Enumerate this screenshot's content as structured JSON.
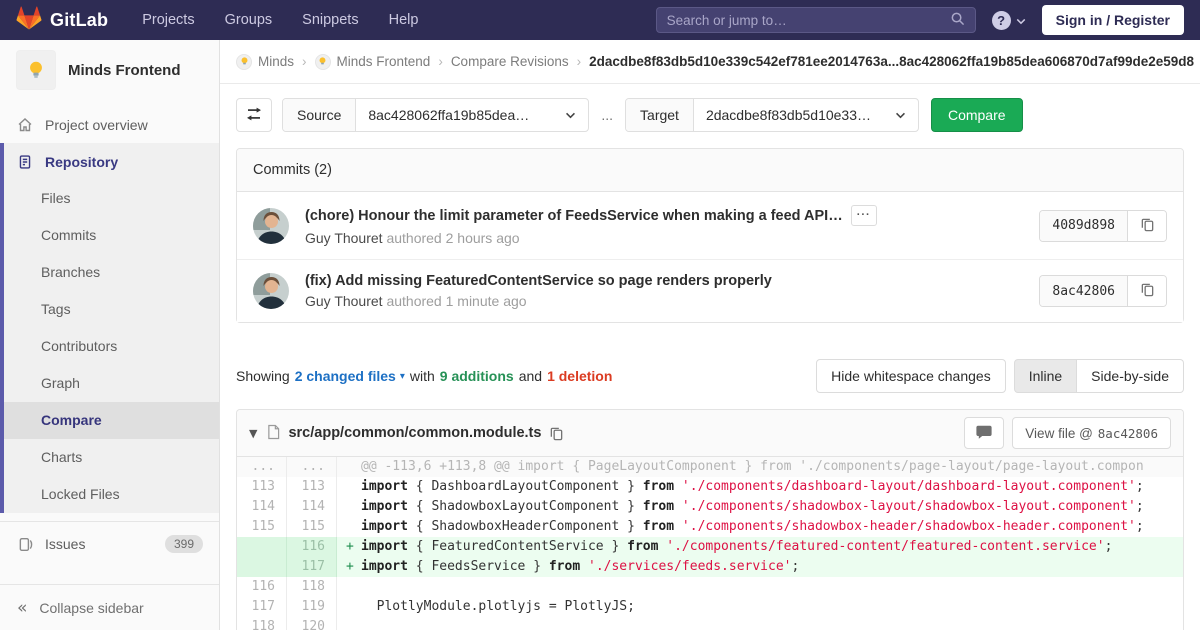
{
  "colors": {
    "topbar_bg": "#2e2c54",
    "accent_green": "#1aaa55",
    "link_blue": "#1d70c4",
    "addition_green": "#269156",
    "deletion_red": "#db3b21",
    "sidebar_active_border": "#5c5bab"
  },
  "header": {
    "logo_text": "GitLab",
    "nav": [
      "Projects",
      "Groups",
      "Snippets",
      "Help"
    ],
    "search_placeholder": "Search or jump to…",
    "help_icon": "?",
    "sign_in": "Sign in / Register"
  },
  "sidebar": {
    "project_name": "Minds Frontend",
    "overview_label": "Project overview",
    "repository_label": "Repository",
    "repository_subitems": [
      {
        "label": "Files",
        "active": false
      },
      {
        "label": "Commits",
        "active": false
      },
      {
        "label": "Branches",
        "active": false
      },
      {
        "label": "Tags",
        "active": false
      },
      {
        "label": "Contributors",
        "active": false
      },
      {
        "label": "Graph",
        "active": false
      },
      {
        "label": "Compare",
        "active": true
      },
      {
        "label": "Charts",
        "active": false
      },
      {
        "label": "Locked Files",
        "active": false
      }
    ],
    "issues_label": "Issues",
    "issues_count": "399",
    "collapse_icon": "«",
    "collapse_label": "Collapse sidebar"
  },
  "breadcrumb": {
    "separator": "›",
    "items": [
      "Minds",
      "Minds Frontend",
      "Compare Revisions"
    ],
    "current": "2dacdbe8f83db5d10e339c542ef781ee2014763a...8ac428062ffa19b85dea606870d7af99de2e59d8"
  },
  "compare_form": {
    "source_label": "Source",
    "source_value": "8ac428062ffa19b85dea…",
    "separator": "...",
    "target_label": "Target",
    "target_value": "2dacdbe8f83db5d10e33…",
    "compare_button": "Compare"
  },
  "commits": {
    "title": "Commits (2)",
    "ellipsis_label": "···",
    "items": [
      {
        "title": "(chore) Honour the limit parameter of FeedsService when making a feed API…",
        "has_ellipsis": true,
        "author": "Guy Thouret",
        "authored": " authored 2 hours ago",
        "sha": "4089d898"
      },
      {
        "title": "(fix) Add missing FeaturedContentService so page renders properly",
        "has_ellipsis": false,
        "author": "Guy Thouret",
        "authored": " authored 1 minute ago",
        "sha": "8ac42806"
      }
    ]
  },
  "diff_summary": {
    "showing": "Showing",
    "changed_files": "2 changed files",
    "caret": "▾",
    "with_word": "with",
    "additions": "9 additions",
    "and_word": "and",
    "deletions": "1 deletion",
    "hide_whitespace": "Hide whitespace changes",
    "inline": "Inline",
    "side_by_side": "Side-by-side"
  },
  "diff_file": {
    "collapse_caret": "▼",
    "path": "src/app/common/common.module.ts",
    "view_file_label": "View file @",
    "view_file_sha": "8ac42806",
    "lines": [
      {
        "type": "match",
        "old": "...",
        "new": "...",
        "sign": "",
        "text": "@@ -113,6 +113,8 @@ import { PageLayoutComponent } from './components/page-layout/page-layout.compon"
      },
      {
        "type": "context",
        "old": "113",
        "new": "113",
        "sign": "",
        "text": "import { DashboardLayoutComponent } from './components/dashboard-layout/dashboard-layout.component';"
      },
      {
        "type": "context",
        "old": "114",
        "new": "114",
        "sign": "",
        "text": "import { ShadowboxLayoutComponent } from './components/shadowbox-layout/shadowbox-layout.component';"
      },
      {
        "type": "context",
        "old": "115",
        "new": "115",
        "sign": "",
        "text": "import { ShadowboxHeaderComponent } from './components/shadowbox-header/shadowbox-header.component';"
      },
      {
        "type": "add",
        "old": "",
        "new": "116",
        "sign": "+",
        "text": "import { FeaturedContentService } from './components/featured-content/featured-content.service';"
      },
      {
        "type": "add",
        "old": "",
        "new": "117",
        "sign": "+",
        "text": "import { FeedsService } from './services/feeds.service';"
      },
      {
        "type": "context",
        "old": "116",
        "new": "118",
        "sign": "",
        "text": ""
      },
      {
        "type": "context",
        "old": "117",
        "new": "119",
        "sign": "",
        "text": "  PlotlyModule.plotlyjs = PlotlyJS;"
      },
      {
        "type": "context",
        "old": "118",
        "new": "120",
        "sign": "",
        "text": ""
      }
    ]
  }
}
